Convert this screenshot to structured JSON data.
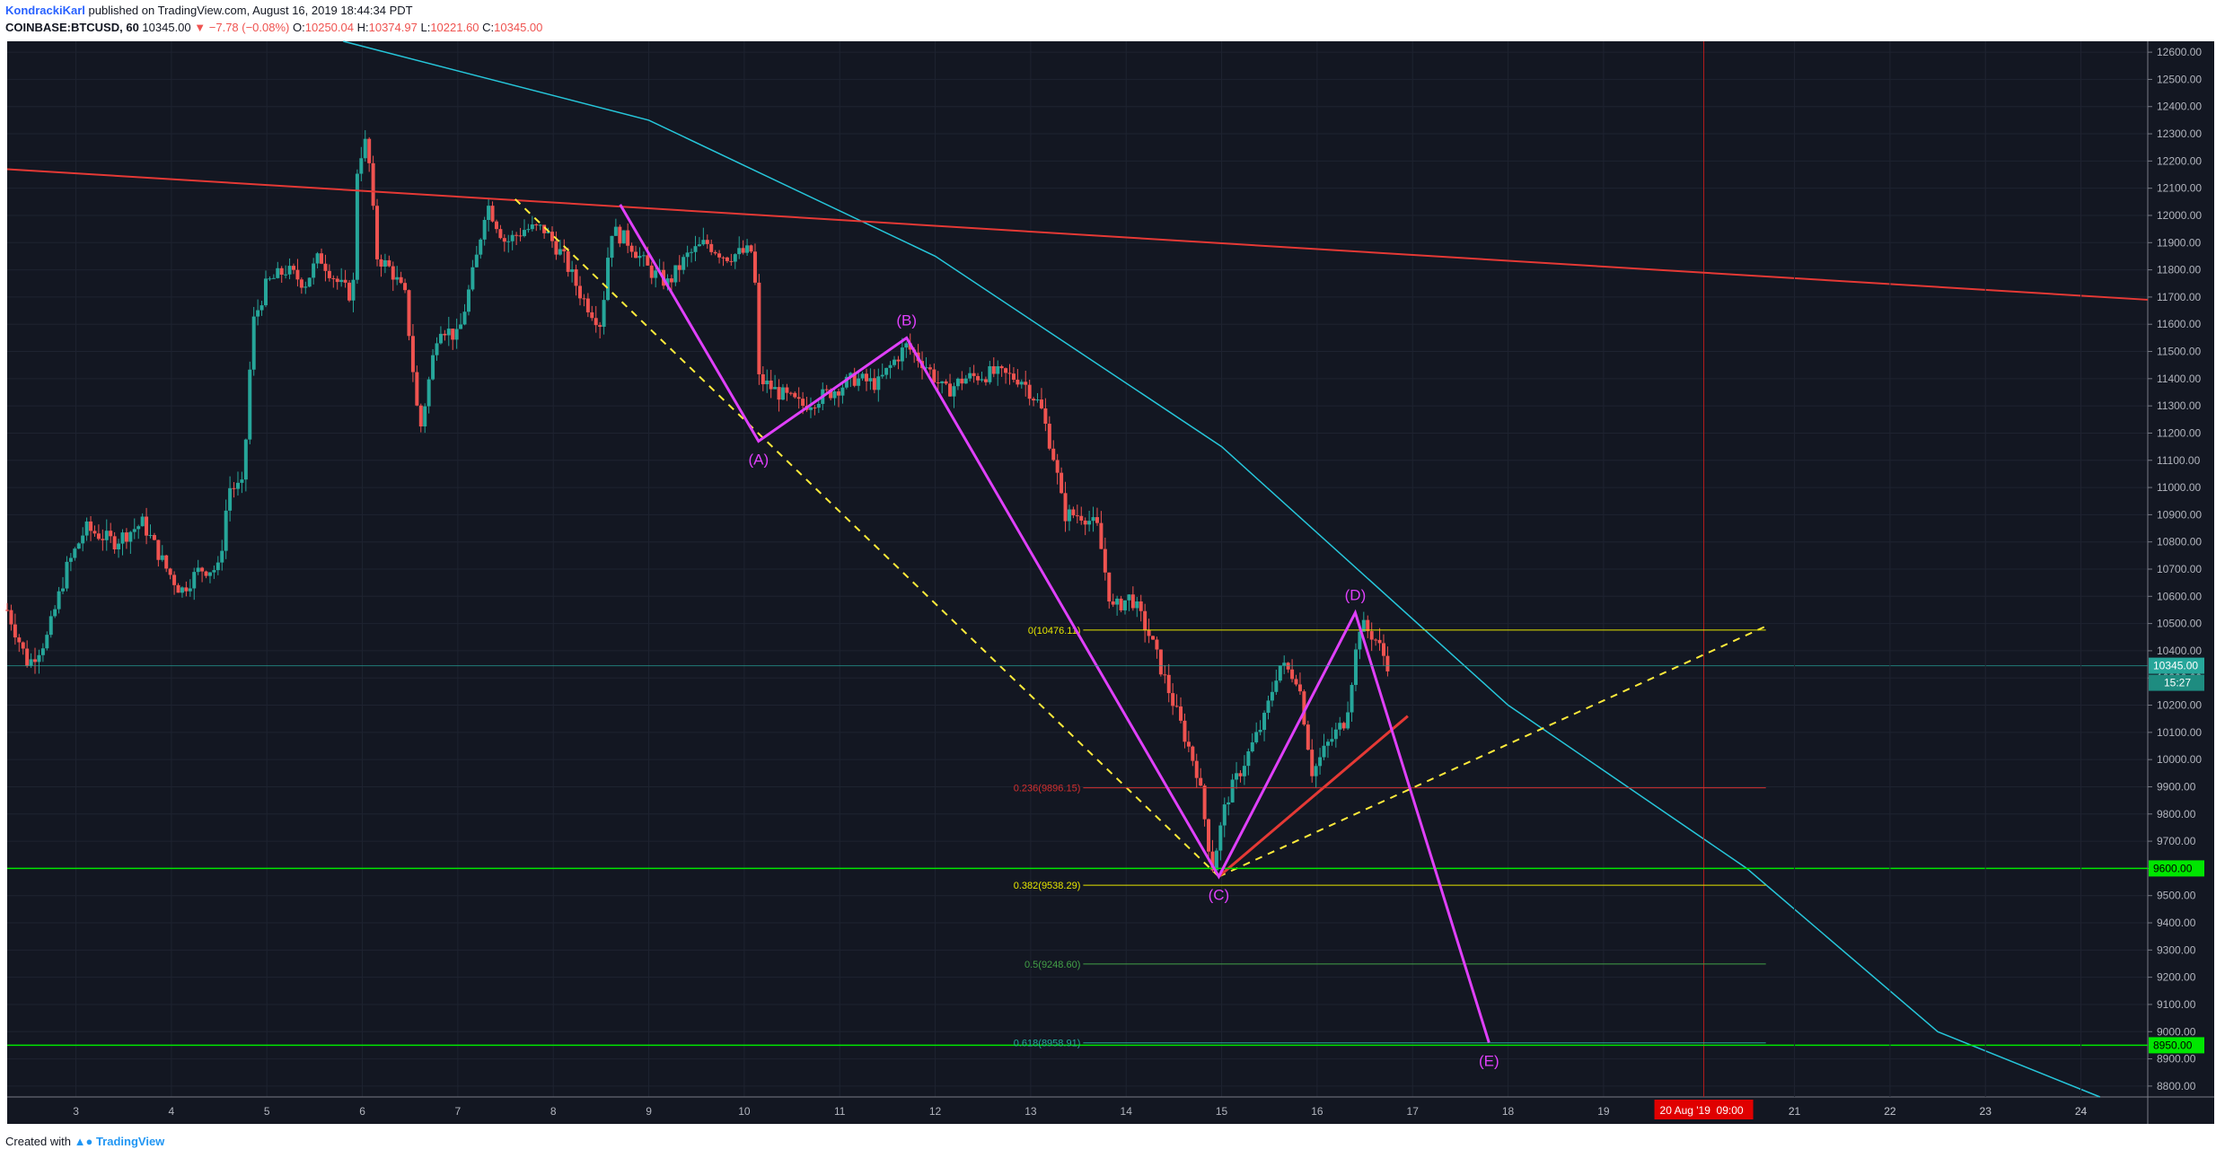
{
  "header": {
    "author": "KondrackiKarl",
    "published_text": "published on TradingView.com, August 16, 2019 18:44:34 PDT",
    "symbol": "COINBASE:BTCUSD, 60",
    "last_price": "10345.00",
    "change": "▼ −7.78 (−0.08%)",
    "ohlc": [
      {
        "label": "O:",
        "value": "10250.04"
      },
      {
        "label": "H:",
        "value": "10374.97"
      },
      {
        "label": "L:",
        "value": "10221.60"
      },
      {
        "label": "C:",
        "value": "10345.00"
      }
    ]
  },
  "footer": {
    "created_with": "Created with",
    "brand": "TradingView"
  },
  "colors": {
    "background": "#131722",
    "grid": "#1e2330",
    "axis_text": "#b2b5be",
    "candle_up": "#26a69a",
    "candle_down": "#ef5350",
    "wave": "#e040fb",
    "fib_yellow": "#e6e600",
    "fib_red": "#d32f2f",
    "fib_green": "#43a047",
    "support_green": "#00e600",
    "red_trendline": "#e53935",
    "arc_cyan": "#26c6da",
    "last_price_bg": "#26a69a",
    "dashed_yellow": "#ffeb3b"
  },
  "chart_data": {
    "type": "candlestick",
    "symbol": "COINBASE:BTCUSD",
    "interval": "60",
    "xlabel": "",
    "ylabel": "",
    "x_ticks": [
      "3",
      "4",
      "5",
      "6",
      "7",
      "8",
      "9",
      "10",
      "11",
      "12",
      "13",
      "14",
      "15",
      "16",
      "17",
      "18",
      "19",
      "20 Aug '19",
      "21",
      "22",
      "23",
      "24"
    ],
    "y_ticks": [
      "12600.00",
      "12500.00",
      "12400.00",
      "12300.00",
      "12200.00",
      "12100.00",
      "12000.00",
      "11900.00",
      "11800.00",
      "11700.00",
      "11600.00",
      "11500.00",
      "11400.00",
      "11300.00",
      "11200.00",
      "11100.00",
      "11000.00",
      "10900.00",
      "10800.00",
      "10700.00",
      "10600.00",
      "10500.00",
      "10400.00",
      "10300.00",
      "10200.00",
      "10100.00",
      "10000.00",
      "9900.00",
      "9800.00",
      "9700.00",
      "9600.00",
      "9500.00",
      "9400.00",
      "9300.00",
      "9200.00",
      "9100.00",
      "9000.00",
      "8900.00",
      "8800.00"
    ],
    "ylim": [
      8760,
      12640
    ],
    "xlim_day": [
      2.28,
      24.7
    ],
    "grid": true,
    "price_series": [
      {
        "day": 2.28,
        "price": 10550
      },
      {
        "day": 2.5,
        "price": 10350
      },
      {
        "day": 2.7,
        "price": 10450
      },
      {
        "day": 2.9,
        "price": 10700
      },
      {
        "day": 3.1,
        "price": 10850
      },
      {
        "day": 3.4,
        "price": 10800
      },
      {
        "day": 3.7,
        "price": 10870
      },
      {
        "day": 3.95,
        "price": 10700
      },
      {
        "day": 4.1,
        "price": 10620
      },
      {
        "day": 4.3,
        "price": 10700
      },
      {
        "day": 4.5,
        "price": 10700
      },
      {
        "day": 4.6,
        "price": 11000
      },
      {
        "day": 4.75,
        "price": 11000
      },
      {
        "day": 4.85,
        "price": 11600
      },
      {
        "day": 5.0,
        "price": 11750
      },
      {
        "day": 5.2,
        "price": 11800
      },
      {
        "day": 5.4,
        "price": 11750
      },
      {
        "day": 5.55,
        "price": 11850
      },
      {
        "day": 5.75,
        "price": 11750
      },
      {
        "day": 5.9,
        "price": 11700
      },
      {
        "day": 5.95,
        "price": 12200
      },
      {
        "day": 6.05,
        "price": 12280
      },
      {
        "day": 6.15,
        "price": 11850
      },
      {
        "day": 6.3,
        "price": 11800
      },
      {
        "day": 6.45,
        "price": 11700
      },
      {
        "day": 6.6,
        "price": 11200
      },
      {
        "day": 6.8,
        "price": 11600
      },
      {
        "day": 7.0,
        "price": 11550
      },
      {
        "day": 7.2,
        "price": 11850
      },
      {
        "day": 7.3,
        "price": 12050
      },
      {
        "day": 7.5,
        "price": 11900
      },
      {
        "day": 7.7,
        "price": 11950
      },
      {
        "day": 7.9,
        "price": 11950
      },
      {
        "day": 8.1,
        "price": 11850
      },
      {
        "day": 8.3,
        "price": 11700
      },
      {
        "day": 8.5,
        "price": 11600
      },
      {
        "day": 8.6,
        "price": 11950
      },
      {
        "day": 8.8,
        "price": 11900
      },
      {
        "day": 9.0,
        "price": 11800
      },
      {
        "day": 9.2,
        "price": 11750
      },
      {
        "day": 9.4,
        "price": 11850
      },
      {
        "day": 9.6,
        "price": 11900
      },
      {
        "day": 9.8,
        "price": 11850
      },
      {
        "day": 10.1,
        "price": 11870
      },
      {
        "day": 10.15,
        "price": 11400
      },
      {
        "day": 10.35,
        "price": 11350
      },
      {
        "day": 10.6,
        "price": 11300
      },
      {
        "day": 10.9,
        "price": 11350
      },
      {
        "day": 11.15,
        "price": 11400
      },
      {
        "day": 11.4,
        "price": 11380
      },
      {
        "day": 11.6,
        "price": 11480
      },
      {
        "day": 11.7,
        "price": 11520
      },
      {
        "day": 11.9,
        "price": 11450
      },
      {
        "day": 12.1,
        "price": 11350
      },
      {
        "day": 12.3,
        "price": 11400
      },
      {
        "day": 12.6,
        "price": 11420
      },
      {
        "day": 12.9,
        "price": 11400
      },
      {
        "day": 13.1,
        "price": 11300
      },
      {
        "day": 13.25,
        "price": 11100
      },
      {
        "day": 13.35,
        "price": 10900
      },
      {
        "day": 13.55,
        "price": 10900
      },
      {
        "day": 13.7,
        "price": 10850
      },
      {
        "day": 13.85,
        "price": 10550
      },
      {
        "day": 14.05,
        "price": 10600
      },
      {
        "day": 14.25,
        "price": 10450
      },
      {
        "day": 14.4,
        "price": 10300
      },
      {
        "day": 14.6,
        "price": 10100
      },
      {
        "day": 14.75,
        "price": 9950
      },
      {
        "day": 14.9,
        "price": 9600
      },
      {
        "day": 15.05,
        "price": 9850
      },
      {
        "day": 15.25,
        "price": 10000
      },
      {
        "day": 15.45,
        "price": 10150
      },
      {
        "day": 15.6,
        "price": 10350
      },
      {
        "day": 15.8,
        "price": 10300
      },
      {
        "day": 15.95,
        "price": 9950
      },
      {
        "day": 16.1,
        "price": 10050
      },
      {
        "day": 16.3,
        "price": 10150
      },
      {
        "day": 16.45,
        "price": 10500
      },
      {
        "day": 16.6,
        "price": 10450
      },
      {
        "day": 16.75,
        "price": 10345
      }
    ],
    "wave_points": [
      {
        "label": "",
        "day": 8.7,
        "price": 12040
      },
      {
        "label": "(A)",
        "day": 10.15,
        "price": 11170
      },
      {
        "label": "(B)",
        "day": 11.7,
        "price": 11550
      },
      {
        "label": "(C)",
        "day": 14.97,
        "price": 9570
      },
      {
        "label": "(D)",
        "day": 16.4,
        "price": 10540
      },
      {
        "label": "(E)",
        "day": 17.8,
        "price": 8960
      }
    ],
    "fib_levels": [
      {
        "label": "0(10476.11)",
        "price": 10476.11,
        "color": "#e6e600"
      },
      {
        "label": "0.236(9896.15)",
        "price": 9896.15,
        "color": "#d32f2f"
      },
      {
        "label": "0.382(9538.29)",
        "price": 9538.29,
        "color": "#e6e600"
      },
      {
        "label": "0.5(9248.60)",
        "price": 9248.6,
        "color": "#43a047"
      },
      {
        "label": "0.618(8958.91)",
        "price": 8958.91,
        "color": "#26a69a"
      }
    ],
    "support_levels": [
      {
        "label": "9600.00",
        "price": 9600
      },
      {
        "label": "8950.00",
        "price": 8950
      }
    ],
    "trendlines": [
      {
        "name": "red-resistance",
        "points": [
          {
            "day": 2.28,
            "price": 12170
          },
          {
            "day": 24.7,
            "price": 11690
          }
        ]
      },
      {
        "name": "yellow-dashed-upper",
        "points": [
          {
            "day": 7.6,
            "price": 12060
          },
          {
            "day": 14.97,
            "price": 9570
          }
        ]
      },
      {
        "name": "yellow-dashed-lower",
        "points": [
          {
            "day": 14.97,
            "price": 9570
          },
          {
            "day": 20.7,
            "price": 10490
          }
        ]
      },
      {
        "name": "red-rising",
        "points": [
          {
            "day": 14.97,
            "price": 9570
          },
          {
            "day": 16.95,
            "price": 10160
          }
        ]
      }
    ],
    "arc": [
      {
        "day": 5.8,
        "price": 12640
      },
      {
        "day": 9.0,
        "price": 12350
      },
      {
        "day": 12.0,
        "price": 11850
      },
      {
        "day": 15.0,
        "price": 11150
      },
      {
        "day": 18.0,
        "price": 10200
      },
      {
        "day": 20.5,
        "price": 9600
      },
      {
        "day": 22.5,
        "price": 9000
      },
      {
        "day": 24.2,
        "price": 8760
      }
    ],
    "current_price": {
      "label": "10345.00",
      "price": 10345,
      "countdown": "15:27"
    },
    "vertical_marker": {
      "day": 20.05,
      "label_date": "20 Aug '19",
      "label_time": "09:00"
    }
  }
}
